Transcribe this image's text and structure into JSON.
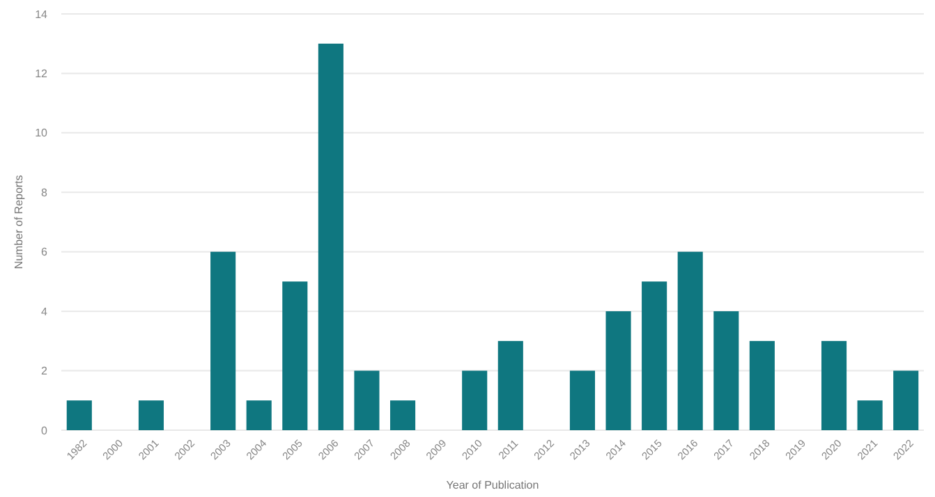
{
  "chart_data": {
    "type": "bar",
    "xlabel": "Year of Publication",
    "ylabel": "Number of Reports",
    "categories": [
      "1982",
      "2000",
      "2001",
      "2002",
      "2003",
      "2004",
      "2005",
      "2006",
      "2007",
      "2008",
      "2009",
      "2010",
      "2011",
      "2012",
      "2013",
      "2014",
      "2015",
      "2016",
      "2017",
      "2018",
      "2019",
      "2020",
      "2021",
      "2022"
    ],
    "values": [
      1,
      0,
      1,
      0,
      6,
      1,
      5,
      13,
      2,
      1,
      0,
      2,
      3,
      0,
      2,
      4,
      5,
      6,
      4,
      3,
      0,
      3,
      1,
      2
    ],
    "color": "#0f7780",
    "ylim": [
      0,
      14
    ],
    "yticks": [
      0,
      2,
      4,
      6,
      8,
      10,
      12,
      14
    ],
    "grid": "y"
  }
}
